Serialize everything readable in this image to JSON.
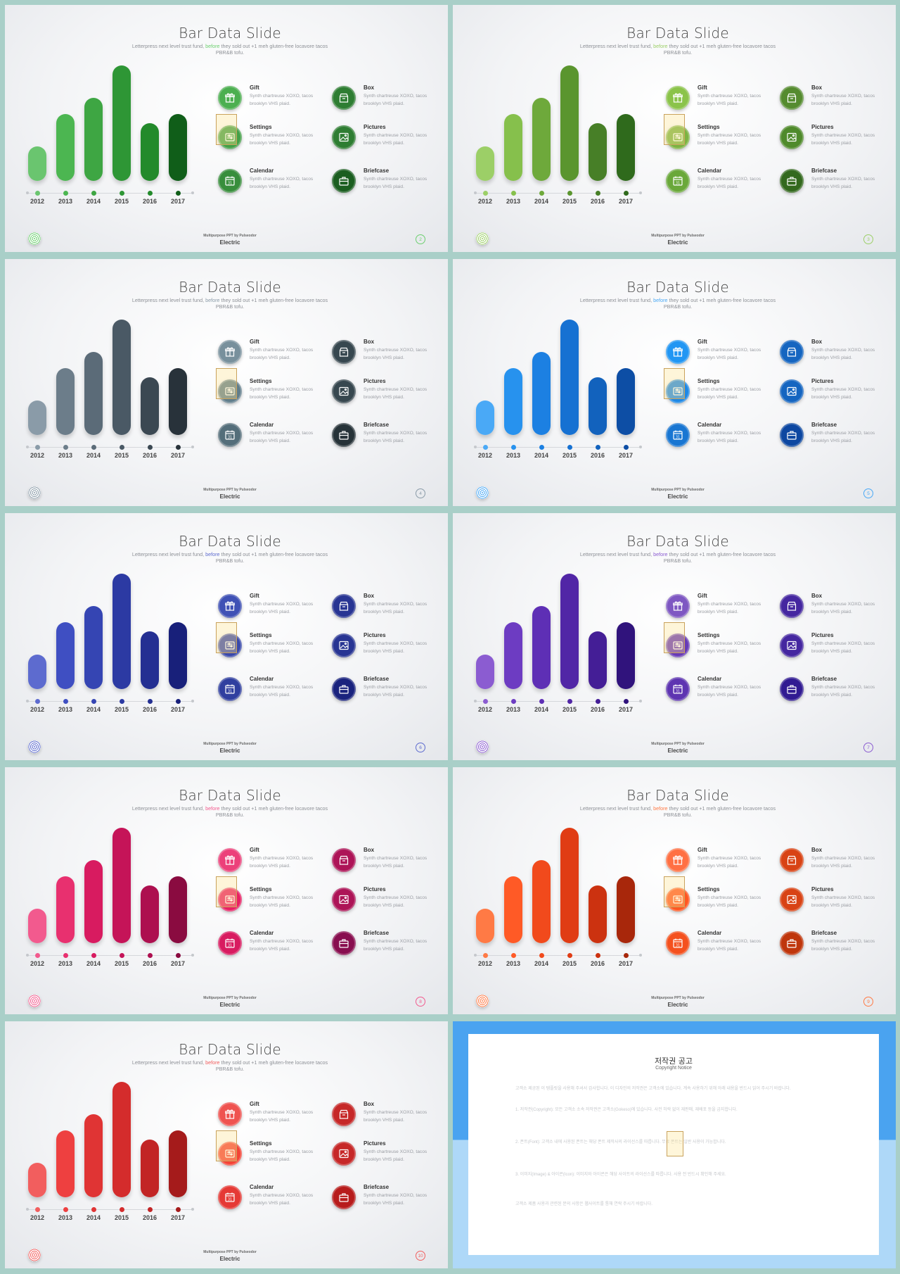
{
  "slide_common": {
    "title": "Bar Data Slide",
    "subtitle_before": "Letterpress next level trust fund, ",
    "subtitle_highlight": "before",
    "subtitle_after": " they sold out +1 meh gluten-free locavore tacos PBR&B tofu.",
    "footer_small": "Multipurpose PPT by Pulseodor",
    "footer_name": "Electric",
    "years": [
      "2012",
      "2013",
      "2014",
      "2015",
      "2016",
      "2017"
    ],
    "features": [
      {
        "title": "Gift",
        "desc": "Synth chartreuse XOXO, tacos brooklyn VHS plaid.",
        "icon": "gift-icon"
      },
      {
        "title": "Box",
        "desc": "Synth chartreuse XOXO, tacos brooklyn VHS plaid.",
        "icon": "box-icon"
      },
      {
        "title": "Settings",
        "desc": "Synth chartreuse XOXO, tacos brooklyn VHS plaid.",
        "icon": "settings-icon"
      },
      {
        "title": "Pictures",
        "desc": "Synth chartreuse XOXO, tacos brooklyn VHS plaid.",
        "icon": "pictures-icon"
      },
      {
        "title": "Calendar",
        "desc": "Synth chartreuse XOXO, tacos brooklyn VHS plaid.",
        "icon": "calendar-icon"
      },
      {
        "title": "Briefcase",
        "desc": "Synth chartreuse XOXO, tacos brooklyn VHS plaid.",
        "icon": "briefcase-icon"
      }
    ]
  },
  "chart_data": {
    "type": "bar",
    "categories": [
      "2012",
      "2013",
      "2014",
      "2015",
      "2016",
      "2017"
    ],
    "values": [
      30,
      58,
      72,
      100,
      50,
      58
    ],
    "ylim": [
      0,
      100
    ],
    "note_scale": "relative heights"
  },
  "slides": [
    {
      "page": "2",
      "colors": [
        "#6ac56f",
        "#4cb651",
        "#3ea643",
        "#2e9635",
        "#238a2b",
        "#105e19"
      ],
      "accent": "#6ccf6f",
      "icon_colors": [
        "#4caf50",
        "#2e7d32",
        "#43a047",
        "#2e7d32",
        "#388e3c",
        "#1b5e20"
      ]
    },
    {
      "page": "3",
      "colors": [
        "#9ccf67",
        "#86c04c",
        "#6ea93b",
        "#5a952e",
        "#477f27",
        "#2f6a1c"
      ],
      "accent": "#9ccf67",
      "icon_colors": [
        "#8bc34a",
        "#558b2f",
        "#7cb342",
        "#4f8a2b",
        "#6aa83a",
        "#33691e"
      ]
    },
    {
      "page": "4",
      "colors": [
        "#8a9ba8",
        "#6c7d8a",
        "#5b6b78",
        "#4a5965",
        "#3b4852",
        "#28323a"
      ],
      "accent": "#8a9ba8",
      "icon_colors": [
        "#78909c",
        "#37474f",
        "#607d8b",
        "#37474f",
        "#546e7a",
        "#263238"
      ]
    },
    {
      "page": "5",
      "colors": [
        "#4aa9f6",
        "#2792ee",
        "#1c80e2",
        "#1671d2",
        "#1262bd",
        "#0d4ea5"
      ],
      "accent": "#4aa9f6",
      "icon_colors": [
        "#2196f3",
        "#1565c0",
        "#1e88e5",
        "#1565c0",
        "#1976d2",
        "#0d47a1"
      ]
    },
    {
      "page": "6",
      "colors": [
        "#5d6bcf",
        "#3f4fc2",
        "#3545b3",
        "#2c3aa3",
        "#242f92",
        "#18207a"
      ],
      "accent": "#5d6bcf",
      "icon_colors": [
        "#3f51b5",
        "#283593",
        "#3949ab",
        "#283593",
        "#303f9f",
        "#1a237e"
      ]
    },
    {
      "page": "7",
      "colors": [
        "#8b5cd1",
        "#6d3cc2",
        "#5e2fb5",
        "#5126a6",
        "#441e96",
        "#30137c"
      ],
      "accent": "#8b5cd1",
      "icon_colors": [
        "#7e57c2",
        "#4527a0",
        "#673ab7",
        "#4527a0",
        "#5e35b1",
        "#311b92"
      ]
    },
    {
      "page": "8",
      "colors": [
        "#f25a8e",
        "#e8306f",
        "#d81b60",
        "#c51458",
        "#ad0f4f",
        "#8a0b40"
      ],
      "accent": "#f25a8e",
      "icon_colors": [
        "#ec407a",
        "#ad1457",
        "#e91e63",
        "#ad1457",
        "#d81b60",
        "#880e4f"
      ]
    },
    {
      "page": "9",
      "colors": [
        "#ff7a45",
        "#ff5a26",
        "#f14a1c",
        "#e03c14",
        "#cc3210",
        "#a8270b"
      ],
      "accent": "#ff7a45",
      "icon_colors": [
        "#ff7043",
        "#d84315",
        "#ff5722",
        "#d84315",
        "#f4511e",
        "#bf360c"
      ]
    },
    {
      "page": "10",
      "colors": [
        "#f25e5e",
        "#ee4040",
        "#e03434",
        "#d42c2c",
        "#c22525",
        "#a51b1b"
      ],
      "accent": "#f25e5e",
      "icon_colors": [
        "#ef5350",
        "#c62828",
        "#f44336",
        "#c62828",
        "#e53935",
        "#b71c1c"
      ]
    }
  ],
  "copyright": {
    "title": "저작권 공고",
    "subtitle": "Copyright Notice",
    "paragraphs": [
      "고객소 제공된 이 템플릿을 사용해 주셔서 감사합니다. 이 디자인의 저작권은 고객소에 있습니다. 계속 사용하기 위해 아래 내용을 반드시 읽어 주시기 바랍니다.",
      "1. 저작권(Copyright): 모든 고객소 소속 저작권은 고객소(Gokeso)에 있습니다. 사전 허락 없이 재판매, 재배포 등을 금지합니다.",
      "2. 폰트(Font): 고객소 내에 사용된 폰트는 해당 폰트 제작사의 라이선스를 따릅니다. 무료 폰트는 일반 사용이 가능합니다.",
      "3. 이미지(Image) & 아이콘(Icon): 이미지와 아이콘은 해당 사이트의 라이선스를 따릅니다. 사용 전 반드시 확인해 주세요.",
      "고객소 제품 사용과 관련된 문의 사항은 웹사이트를 통해 연락 주시기 바랍니다."
    ]
  }
}
